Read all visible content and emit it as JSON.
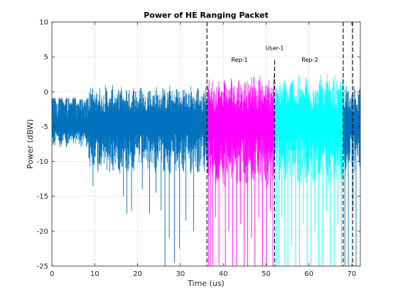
{
  "chart_data": {
    "type": "line",
    "title": "Power of HE Ranging Packet",
    "xlabel": "Time (us)",
    "ylabel": "Power (dBW)",
    "xlim": [
      0,
      72
    ],
    "ylim": [
      -25,
      10
    ],
    "xticks": [
      0,
      10,
      20,
      30,
      40,
      50,
      60,
      70
    ],
    "yticks": [
      -25,
      -20,
      -15,
      -10,
      -5,
      0,
      5,
      10
    ],
    "grid": true,
    "series": [
      {
        "color": "#0072BD",
        "segments": [
          {
            "x_start": 0,
            "x_end": 36.2,
            "hi_min": -1.2,
            "hi_max": -0.8,
            "lo_min": -8.0,
            "lo_max": -6.0,
            "burst_start": 8.5,
            "burst_hi_min": 1.0,
            "burst_lo_min": -12.0,
            "spikes": [
              [
                9.6,
                -13.5
              ],
              [
                13.5,
                -11.5
              ],
              [
                16.7,
                -15.0
              ],
              [
                17.5,
                -17.5
              ],
              [
                18.6,
                -17.0
              ],
              [
                21.1,
                -14.0
              ],
              [
                22.8,
                -17.5
              ],
              [
                24.3,
                -14.5
              ],
              [
                25.5,
                -17.0
              ],
              [
                26.4,
                -25.0
              ],
              [
                27.4,
                -21.0
              ],
              [
                28.6,
                -24.5
              ],
              [
                29.8,
                -22.5
              ],
              [
                31.3,
                -18.5
              ],
              [
                33.1,
                -20.0
              ]
            ]
          },
          {
            "x_start": 68.0,
            "x_end": 72.0,
            "hi_min": 1.0,
            "hi_max": 0.5,
            "lo_min": -12.0,
            "lo_max": -8.0,
            "burst_start": 68.0,
            "burst_hi_min": 1.0,
            "burst_lo_min": -12.0,
            "spikes": [
              [
                68.4,
                -25.0
              ],
              [
                69.2,
                -25.0
              ],
              [
                70.3,
                -17.0
              ],
              [
                71.0,
                -25.0
              ]
            ]
          }
        ]
      },
      {
        "color": "#FF00FF",
        "segments": [
          {
            "x_start": 36.2,
            "x_end": 52.0,
            "hi_min": 2.5,
            "hi_max": 1.0,
            "lo_min": -14.0,
            "lo_max": -8.0,
            "burst_start": 36.2,
            "burst_hi_min": 2.5,
            "burst_lo_min": -14.0,
            "spikes": [
              [
                36.6,
                -25.0
              ],
              [
                37.0,
                -25.0
              ],
              [
                37.5,
                -25.0
              ],
              [
                38.2,
                -18.0
              ],
              [
                39.0,
                -25.0
              ],
              [
                40.5,
                -25.0
              ],
              [
                41.3,
                -20.0
              ],
              [
                42.2,
                -25.0
              ],
              [
                43.1,
                -25.0
              ],
              [
                44.0,
                -19.0
              ],
              [
                44.9,
                -25.0
              ],
              [
                45.7,
                -25.0
              ],
              [
                46.6,
                -21.0
              ],
              [
                47.4,
                -25.0
              ],
              [
                48.3,
                -18.0
              ],
              [
                49.2,
                -25.0
              ],
              [
                50.1,
                -25.0
              ],
              [
                51.0,
                -17.0
              ],
              [
                51.6,
                -25.0
              ]
            ]
          }
        ]
      },
      {
        "color": "#00FFFF",
        "segments": [
          {
            "x_start": 52.0,
            "x_end": 68.0,
            "hi_min": 2.5,
            "hi_max": 1.0,
            "lo_min": -14.0,
            "lo_max": -8.0,
            "burst_start": 52.0,
            "burst_hi_min": 2.5,
            "burst_lo_min": -14.0,
            "spikes": [
              [
                52.4,
                -25.0
              ],
              [
                53.0,
                -25.0
              ],
              [
                53.7,
                -18.0
              ],
              [
                54.4,
                -25.0
              ],
              [
                55.1,
                -25.0
              ],
              [
                56.0,
                -22.0
              ],
              [
                56.9,
                -25.0
              ],
              [
                57.8,
                -25.0
              ],
              [
                58.7,
                -19.0
              ],
              [
                59.6,
                -25.0
              ],
              [
                60.5,
                -25.0
              ],
              [
                61.4,
                -20.0
              ],
              [
                62.3,
                -25.0
              ],
              [
                63.2,
                -25.0
              ],
              [
                64.1,
                -17.0
              ],
              [
                65.0,
                -25.0
              ],
              [
                65.9,
                -25.0
              ],
              [
                66.8,
                -19.0
              ],
              [
                67.6,
                -25.0
              ]
            ]
          }
        ]
      }
    ],
    "markers": [
      {
        "x": 36.2,
        "style": "dashed"
      },
      {
        "x": 52.0,
        "style": "dashed",
        "ymax": 4.5
      },
      {
        "x": 68.0,
        "style": "dashed"
      },
      {
        "x": 70.2,
        "style": "dashed"
      }
    ],
    "annotations": [
      {
        "text": "Rep-1",
        "x": 43.8,
        "y": 4.3
      },
      {
        "text": "User-1",
        "x": 52.0,
        "y": 6.0
      },
      {
        "text": "Rep-2",
        "x": 60.2,
        "y": 4.3
      }
    ]
  }
}
